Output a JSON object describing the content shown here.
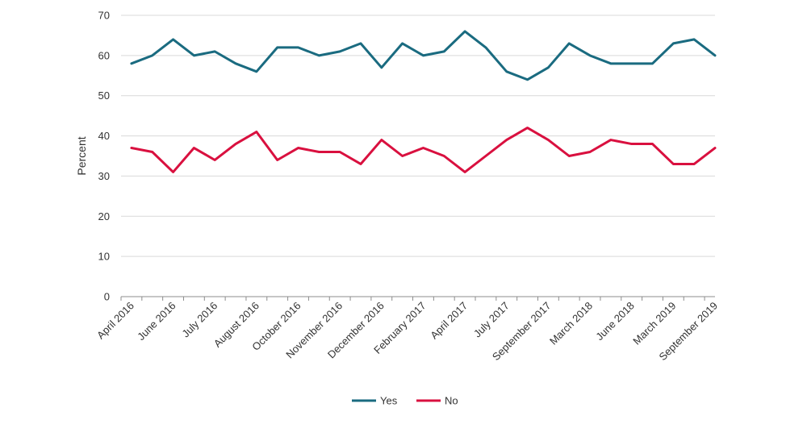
{
  "chart_data": {
    "type": "line",
    "title": "",
    "xlabel": "",
    "ylabel": "Percent",
    "ylim": [
      0,
      70
    ],
    "yticks": [
      0,
      10,
      20,
      30,
      40,
      50,
      60,
      70
    ],
    "grid": "horizontal",
    "legend": "bottom-center",
    "x_tick_labels": [
      "April 2016",
      "June 2016",
      "July 2016",
      "August 2016",
      "October 2016",
      "November 2016",
      "December 2016",
      "February 2017",
      "April 2017",
      "July 2017",
      "September 2017",
      "March 2018",
      "June 2018",
      "March 2019",
      "September 2019"
    ],
    "series": [
      {
        "name": "Yes",
        "color": "#1a6b80",
        "values": [
          58,
          60,
          64,
          60,
          61,
          58,
          56,
          62,
          62,
          60,
          61,
          63,
          57,
          63,
          60,
          61,
          66,
          62,
          56,
          54,
          57,
          63,
          60,
          58,
          58,
          58,
          63,
          64,
          60
        ]
      },
      {
        "name": "No",
        "color": "#d9103f",
        "values": [
          37,
          36,
          31,
          37,
          34,
          38,
          41,
          34,
          37,
          36,
          36,
          33,
          39,
          35,
          37,
          35,
          31,
          35,
          39,
          42,
          39,
          35,
          36,
          39,
          38,
          38,
          33,
          33,
          37
        ]
      }
    ]
  }
}
